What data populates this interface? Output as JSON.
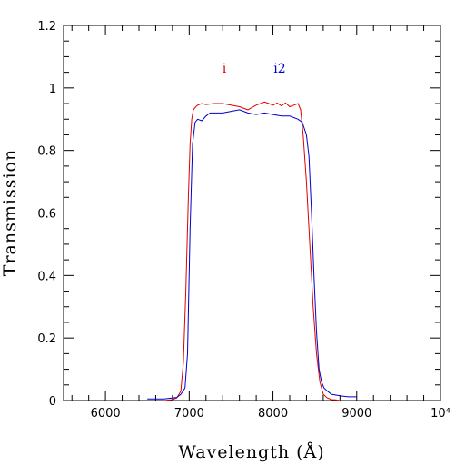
{
  "chart_data": {
    "type": "line",
    "xlabel": "Wavelength (Å)",
    "ylabel": "Transmission",
    "xlim": [
      5500,
      10000
    ],
    "ylim": [
      0,
      1.2
    ],
    "x_ticks": [
      {
        "value": 6000,
        "label": "6000"
      },
      {
        "value": 7000,
        "label": "7000"
      },
      {
        "value": 8000,
        "label": "8000"
      },
      {
        "value": 9000,
        "label": "9000"
      },
      {
        "value": 10000,
        "label": "10⁴"
      }
    ],
    "y_ticks": [
      {
        "value": 0,
        "label": "0"
      },
      {
        "value": 0.2,
        "label": "0.2"
      },
      {
        "value": 0.4,
        "label": "0.4"
      },
      {
        "value": 0.6,
        "label": "0.6"
      },
      {
        "value": 0.8,
        "label": "0.8"
      },
      {
        "value": 1.0,
        "label": "1"
      },
      {
        "value": 1.2,
        "label": "1.2"
      }
    ],
    "grid": false,
    "series": [
      {
        "name": "i",
        "color": "#e00000",
        "x": [
          6700,
          6800,
          6850,
          6900,
          6930,
          6960,
          6990,
          7010,
          7030,
          7050,
          7080,
          7100,
          7150,
          7200,
          7300,
          7400,
          7500,
          7600,
          7700,
          7800,
          7900,
          7950,
          8000,
          8050,
          8100,
          8150,
          8200,
          8250,
          8300,
          8330,
          8360,
          8400,
          8440,
          8480,
          8520,
          8560,
          8600,
          8650,
          8700,
          8750,
          8800
        ],
        "y": [
          0.0,
          0.003,
          0.008,
          0.03,
          0.12,
          0.35,
          0.65,
          0.82,
          0.9,
          0.93,
          0.94,
          0.945,
          0.95,
          0.947,
          0.95,
          0.95,
          0.945,
          0.94,
          0.93,
          0.945,
          0.955,
          0.95,
          0.945,
          0.952,
          0.943,
          0.952,
          0.94,
          0.945,
          0.95,
          0.93,
          0.85,
          0.7,
          0.5,
          0.3,
          0.15,
          0.06,
          0.02,
          0.008,
          0.003,
          0.002,
          0.0
        ]
      },
      {
        "name": "i2",
        "color": "#0000cc",
        "x": [
          6500,
          6700,
          6850,
          6900,
          6950,
          6980,
          7010,
          7040,
          7070,
          7100,
          7150,
          7200,
          7250,
          7300,
          7400,
          7500,
          7600,
          7700,
          7800,
          7900,
          8000,
          8100,
          8200,
          8300,
          8350,
          8400,
          8430,
          8460,
          8490,
          8520,
          8550,
          8580,
          8610,
          8650,
          8700,
          8800,
          8900,
          9000
        ],
        "y": [
          0.005,
          0.005,
          0.01,
          0.02,
          0.04,
          0.15,
          0.55,
          0.82,
          0.89,
          0.9,
          0.895,
          0.91,
          0.92,
          0.92,
          0.92,
          0.925,
          0.93,
          0.92,
          0.915,
          0.92,
          0.915,
          0.91,
          0.91,
          0.9,
          0.89,
          0.85,
          0.78,
          0.6,
          0.4,
          0.22,
          0.1,
          0.06,
          0.04,
          0.03,
          0.02,
          0.015,
          0.012,
          0.012
        ]
      }
    ]
  }
}
